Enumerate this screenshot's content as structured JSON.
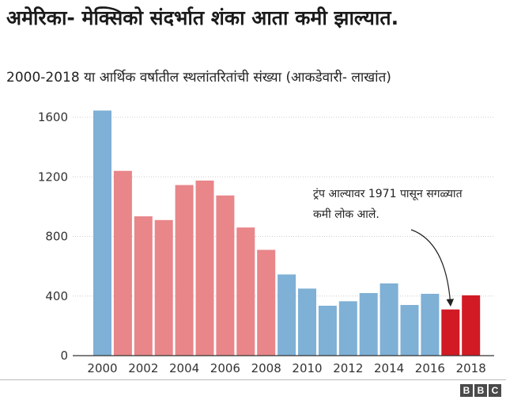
{
  "chart_data": {
    "type": "bar",
    "title": "अमेरिका- मेक्सिको संदर्भात शंका आता कमी झाल्यात.",
    "subtitle": "2000-2018 या आर्थिक वर्षातील स्थलांतरितांची संख्या (आकडेवारी- लाखांत)",
    "categories": [
      "2000",
      "2001",
      "2002",
      "2003",
      "2004",
      "2005",
      "2006",
      "2007",
      "2008",
      "2009",
      "2010",
      "2011",
      "2012",
      "2013",
      "2014",
      "2015",
      "2016",
      "2017",
      "2018"
    ],
    "values": [
      1645,
      1240,
      935,
      910,
      1145,
      1175,
      1075,
      860,
      710,
      545,
      450,
      335,
      365,
      420,
      485,
      340,
      415,
      310,
      405
    ],
    "x_tick_labels": [
      "2000",
      "2002",
      "2004",
      "2006",
      "2008",
      "2010",
      "2012",
      "2014",
      "2016",
      "2018"
    ],
    "y_ticks": [
      0,
      400,
      800,
      1200,
      1600
    ],
    "ylim": [
      0,
      1800
    ],
    "xlabel": "",
    "ylabel": "",
    "grid": true,
    "colors": {
      "blue": "#7fb0d6",
      "pink": "#e8868a",
      "red": "#d11a24"
    },
    "bar_colors": [
      "blue",
      "pink",
      "pink",
      "pink",
      "pink",
      "pink",
      "pink",
      "pink",
      "pink",
      "blue",
      "blue",
      "blue",
      "blue",
      "blue",
      "blue",
      "blue",
      "blue",
      "red",
      "red"
    ],
    "annotation": {
      "lines": [
        "ट्रंप आल्यावर 1971 पासून सगळ्यात",
        "कमी लोक आले."
      ],
      "target": "2017"
    }
  },
  "logo": [
    "B",
    "B",
    "C"
  ]
}
